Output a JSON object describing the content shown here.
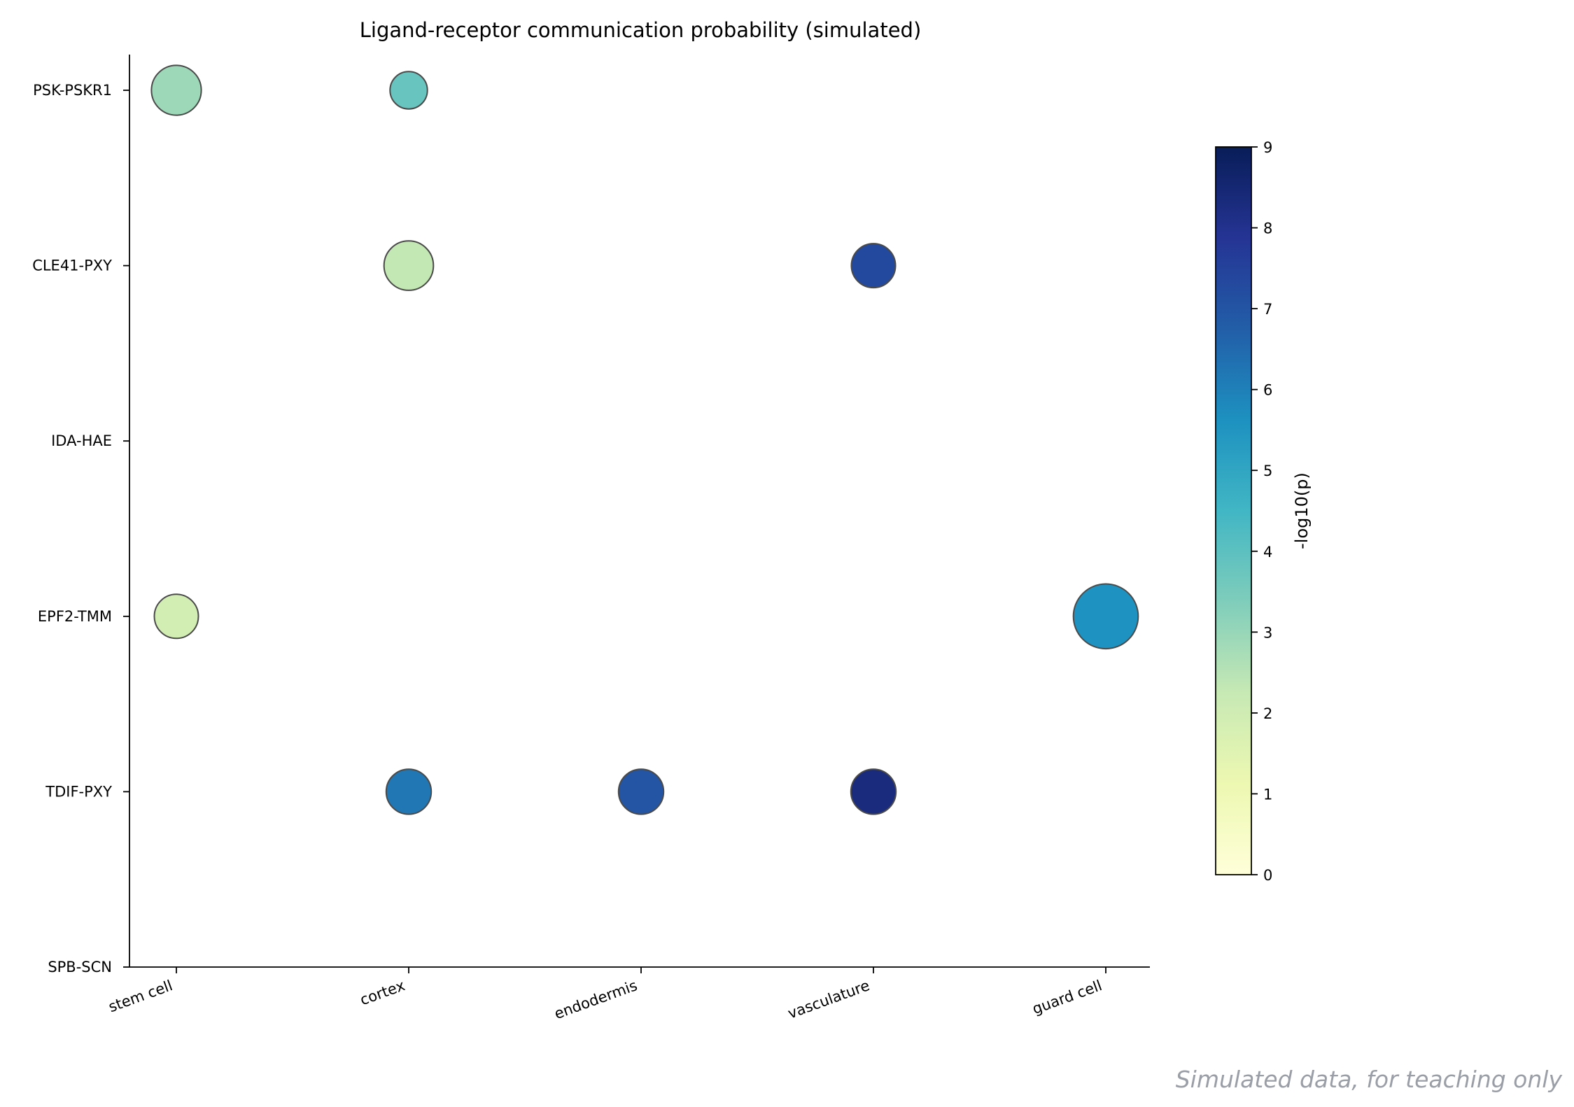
{
  "chart_data": {
    "type": "scatter",
    "subtype": "bubble",
    "title": "Ligand-receptor communication probability (simulated)",
    "xlabel": "",
    "ylabel": "",
    "x_categories": [
      "stem cell",
      "cortex",
      "endodermis",
      "vasculature",
      "guard cell"
    ],
    "y_categories": [
      "PSK-PSKR1",
      "CLE41-PXY",
      "IDA-HAE",
      "EPF2-TMM",
      "TDIF-PXY",
      "SPB-SCN"
    ],
    "points": [
      {
        "x": "stem cell",
        "y": "PSK-PSKR1",
        "prob": 0.55,
        "neglog10p": 2.9
      },
      {
        "x": "cortex",
        "y": "PSK-PSKR1",
        "prob": 0.31,
        "neglog10p": 3.8
      },
      {
        "x": "cortex",
        "y": "CLE41-PXY",
        "prob": 0.54,
        "neglog10p": 2.3
      },
      {
        "x": "vasculature",
        "y": "CLE41-PXY",
        "prob": 0.43,
        "neglog10p": 7.3
      },
      {
        "x": "stem cell",
        "y": "EPF2-TMM",
        "prob": 0.43,
        "neglog10p": 1.9
      },
      {
        "x": "guard cell",
        "y": "EPF2-TMM",
        "prob": 0.93,
        "neglog10p": 5.6
      },
      {
        "x": "cortex",
        "y": "TDIF-PXY",
        "prob": 0.45,
        "neglog10p": 6.2
      },
      {
        "x": "endodermis",
        "y": "TDIF-PXY",
        "prob": 0.45,
        "neglog10p": 7.0
      },
      {
        "x": "vasculature",
        "y": "TDIF-PXY",
        "prob": 0.45,
        "neglog10p": 8.3
      }
    ],
    "size_scale": {
      "min_prob": 0.0,
      "max_prob": 1.0
    },
    "colorbar": {
      "label": "-log10(p)",
      "range": [
        0,
        9
      ],
      "ticks": [
        "0",
        "1",
        "2",
        "3",
        "4",
        "5",
        "6",
        "7",
        "8",
        "9"
      ],
      "colormap": "YlGnBu",
      "stops": [
        "#ffffd9",
        "#edf8b1",
        "#c7e9b4",
        "#7fcdbb",
        "#41b6c4",
        "#1d91c0",
        "#225ea8",
        "#253494",
        "#081d58"
      ]
    },
    "grid": false,
    "legend": "right colorbar"
  },
  "watermark": "Simulated data, for teaching only",
  "colors": {
    "axis": "#000000",
    "bubble_edge": "#4a4a4a",
    "watermark": "#9a9ea6"
  }
}
